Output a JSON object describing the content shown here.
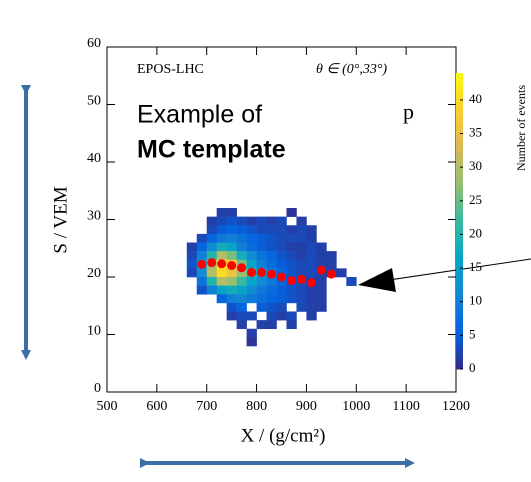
{
  "chart_data": {
    "type": "heatmap",
    "annotations": {
      "model": "EPOS-LHC",
      "angle": "θ ∈ (0°,33°)",
      "example_line1": "Example of",
      "example_line2": "MC template",
      "primary": "p"
    },
    "xlabel": "X / (g/cm²)",
    "ylabel": "S / VEM",
    "xlim": [
      500,
      1200
    ],
    "xticks": [
      500,
      600,
      700,
      800,
      900,
      1000,
      1100,
      1200
    ],
    "ylim": [
      0,
      60
    ],
    "yticks": [
      0,
      10,
      20,
      30,
      40,
      50,
      60
    ],
    "x_bin": 20,
    "y_bin": 1.5,
    "rows": [
      {
        "y": 30.5,
        "x0": 720,
        "counts": [
          2,
          2,
          null,
          null,
          null,
          null,
          null,
          1
        ]
      },
      {
        "y": 29,
        "x0": 700,
        "counts": [
          2,
          3,
          4,
          3,
          2,
          3,
          2,
          3,
          null,
          2
        ]
      },
      {
        "y": 27.5,
        "x0": 700,
        "counts": [
          3,
          5,
          6,
          5,
          4,
          3,
          3,
          3,
          2,
          3,
          2
        ]
      },
      {
        "y": 26,
        "x0": 680,
        "counts": [
          3,
          6,
          9,
          10,
          8,
          6,
          5,
          4,
          3,
          3,
          3,
          2
        ]
      },
      {
        "y": 24.5,
        "x0": 660,
        "counts": [
          2,
          6,
          12,
          18,
          16,
          10,
          7,
          5,
          4,
          3,
          2,
          2,
          3,
          2
        ]
      },
      {
        "y": 23,
        "x0": 660,
        "counts": [
          3,
          10,
          20,
          30,
          26,
          18,
          12,
          8,
          6,
          4,
          3,
          2,
          3,
          2,
          2
        ]
      },
      {
        "y": 21.5,
        "x0": 660,
        "counts": [
          4,
          14,
          28,
          42,
          38,
          26,
          16,
          10,
          7,
          5,
          4,
          3,
          3,
          2,
          2
        ]
      },
      {
        "y": 20,
        "x0": 660,
        "counts": [
          3,
          12,
          30,
          40,
          36,
          28,
          20,
          14,
          9,
          6,
          4,
          3,
          3,
          2,
          2,
          2
        ]
      },
      {
        "y": 18.5,
        "x0": 680,
        "counts": [
          8,
          20,
          30,
          28,
          22,
          16,
          12,
          9,
          6,
          4,
          3,
          2,
          2,
          null,
          null,
          3
        ]
      },
      {
        "y": 17,
        "x0": 680,
        "counts": [
          4,
          10,
          16,
          18,
          16,
          12,
          9,
          7,
          5,
          4,
          3,
          2,
          2
        ]
      },
      {
        "y": 15.5,
        "x0": 720,
        "counts": [
          6,
          10,
          11,
          9,
          8,
          6,
          5,
          4,
          3,
          2,
          2
        ]
      },
      {
        "y": 14,
        "x0": 740,
        "counts": [
          4,
          6,
          null,
          5,
          4,
          3,
          null,
          3,
          2,
          2
        ]
      },
      {
        "y": 12.5,
        "x0": 740,
        "counts": [
          2,
          3,
          3,
          null,
          3,
          2,
          3,
          null,
          2
        ]
      },
      {
        "y": 11,
        "x0": 760,
        "counts": [
          2,
          null,
          2,
          2,
          null,
          2
        ]
      },
      {
        "y": 9.5,
        "x0": 780,
        "counts": [
          2
        ]
      },
      {
        "y": 8,
        "x0": 780,
        "counts": [
          1
        ]
      }
    ],
    "points": {
      "color": "#ff0000",
      "x": [
        690,
        710,
        730,
        750,
        770,
        790,
        810,
        830,
        850,
        870,
        890,
        910,
        930,
        950
      ],
      "y": [
        22.2,
        22.5,
        22.3,
        22.0,
        21.6,
        20.8,
        20.8,
        20.5,
        20.0,
        19.4,
        19.6,
        19.0,
        21.2,
        20.5
      ]
    },
    "colorbar": {
      "label": "Number of events",
      "lim": [
        0,
        44
      ],
      "ticks": [
        0,
        5,
        10,
        15,
        20,
        25,
        30,
        35,
        40
      ],
      "colormap": [
        "#352a87",
        "#0363e1",
        "#1485d4",
        "#06a7c6",
        "#38b99e",
        "#92bf73",
        "#d9ba56",
        "#fcce2e",
        "#f9fb0e"
      ]
    }
  }
}
